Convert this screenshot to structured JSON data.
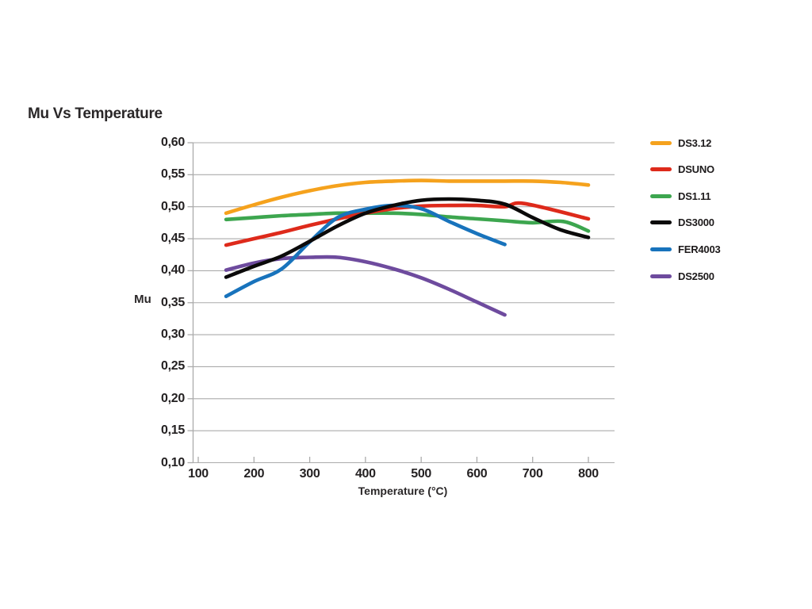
{
  "page": {
    "background": "#ffffff",
    "text_color": "#2a2728",
    "grid_color": "#ababab"
  },
  "chart_data": {
    "type": "line",
    "title": "Mu Vs Temperature",
    "xlabel": "Temperature (°C)",
    "ylabel": "Mu",
    "xlim": [
      100,
      800
    ],
    "ylim": [
      0.1,
      0.6
    ],
    "grid": "horizontal-only",
    "legend_position": "right",
    "x_ticks": [
      {
        "value": 100,
        "label": "100"
      },
      {
        "value": 200,
        "label": "200"
      },
      {
        "value": 300,
        "label": "300"
      },
      {
        "value": 400,
        "label": "400"
      },
      {
        "value": 500,
        "label": "500"
      },
      {
        "value": 600,
        "label": "600"
      },
      {
        "value": 700,
        "label": "700"
      },
      {
        "value": 800,
        "label": "800"
      }
    ],
    "y_ticks": [
      {
        "value": 0.6,
        "label": "0,60"
      },
      {
        "value": 0.55,
        "label": "0,55"
      },
      {
        "value": 0.5,
        "label": "0,50"
      },
      {
        "value": 0.45,
        "label": "0,45"
      },
      {
        "value": 0.4,
        "label": "0,40"
      },
      {
        "value": 0.35,
        "label": "0,35"
      },
      {
        "value": 0.3,
        "label": "0,30"
      },
      {
        "value": 0.25,
        "label": "0,25"
      },
      {
        "value": 0.2,
        "label": "0,20"
      },
      {
        "value": 0.15,
        "label": "0,15"
      },
      {
        "value": 0.1,
        "label": "0,10"
      }
    ],
    "series": [
      {
        "name": "DS3.12",
        "color": "#F5A21D",
        "points": [
          [
            150,
            0.49
          ],
          [
            200,
            0.503
          ],
          [
            250,
            0.515
          ],
          [
            300,
            0.525
          ],
          [
            350,
            0.533
          ],
          [
            400,
            0.538
          ],
          [
            450,
            0.54
          ],
          [
            500,
            0.541
          ],
          [
            550,
            0.54
          ],
          [
            600,
            0.54
          ],
          [
            650,
            0.54
          ],
          [
            700,
            0.54
          ],
          [
            750,
            0.538
          ],
          [
            800,
            0.534
          ]
        ]
      },
      {
        "name": "DSUNO",
        "color": "#DE2A1B",
        "points": [
          [
            150,
            0.44
          ],
          [
            200,
            0.45
          ],
          [
            250,
            0.46
          ],
          [
            300,
            0.471
          ],
          [
            350,
            0.481
          ],
          [
            400,
            0.49
          ],
          [
            450,
            0.497
          ],
          [
            500,
            0.501
          ],
          [
            550,
            0.502
          ],
          [
            600,
            0.502
          ],
          [
            650,
            0.5
          ],
          [
            685,
            0.505
          ],
          [
            800,
            0.481
          ]
        ]
      },
      {
        "name": "DS1.11",
        "color": "#3DA64F",
        "points": [
          [
            150,
            0.48
          ],
          [
            200,
            0.483
          ],
          [
            250,
            0.486
          ],
          [
            300,
            0.488
          ],
          [
            350,
            0.49
          ],
          [
            400,
            0.49
          ],
          [
            450,
            0.49
          ],
          [
            500,
            0.488
          ],
          [
            550,
            0.484
          ],
          [
            600,
            0.481
          ],
          [
            650,
            0.478
          ],
          [
            700,
            0.475
          ],
          [
            755,
            0.477
          ],
          [
            800,
            0.462
          ]
        ]
      },
      {
        "name": "DS3000",
        "color": "#0B0A0A",
        "points": [
          [
            150,
            0.39
          ],
          [
            200,
            0.407
          ],
          [
            250,
            0.423
          ],
          [
            300,
            0.446
          ],
          [
            350,
            0.47
          ],
          [
            400,
            0.49
          ],
          [
            450,
            0.502
          ],
          [
            500,
            0.51
          ],
          [
            550,
            0.512
          ],
          [
            600,
            0.51
          ],
          [
            650,
            0.504
          ],
          [
            700,
            0.483
          ],
          [
            750,
            0.464
          ],
          [
            800,
            0.452
          ]
        ]
      },
      {
        "name": "FER4003",
        "color": "#1873BC",
        "points": [
          [
            150,
            0.36
          ],
          [
            200,
            0.383
          ],
          [
            250,
            0.403
          ],
          [
            300,
            0.445
          ],
          [
            350,
            0.483
          ],
          [
            400,
            0.496
          ],
          [
            450,
            0.502
          ],
          [
            500,
            0.497
          ],
          [
            550,
            0.477
          ],
          [
            600,
            0.458
          ],
          [
            650,
            0.441
          ]
        ]
      },
      {
        "name": "DS2500",
        "color": "#6E4B9E",
        "points": [
          [
            150,
            0.401
          ],
          [
            200,
            0.412
          ],
          [
            250,
            0.419
          ],
          [
            300,
            0.421
          ],
          [
            350,
            0.421
          ],
          [
            400,
            0.414
          ],
          [
            450,
            0.403
          ],
          [
            500,
            0.389
          ],
          [
            550,
            0.371
          ],
          [
            600,
            0.351
          ],
          [
            650,
            0.331
          ]
        ]
      }
    ]
  }
}
